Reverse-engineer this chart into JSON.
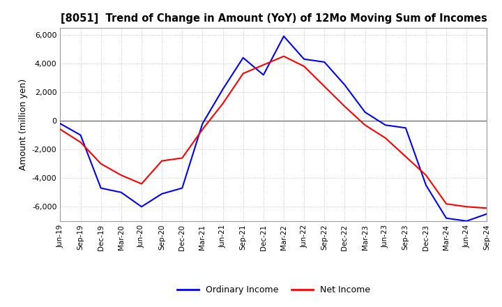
{
  "title": "[8051]  Trend of Change in Amount (YoY) of 12Mo Moving Sum of Incomes",
  "ylabel": "Amount (million yen)",
  "ylim": [
    -7000,
    6500
  ],
  "yticks": [
    -6000,
    -4000,
    -2000,
    0,
    2000,
    4000,
    6000
  ],
  "background_color": "#ffffff",
  "grid_color": "#aaaaaa",
  "ordinary_income_color": "#0000ff",
  "net_income_color": "#ff0000",
  "x_labels": [
    "Jun-19",
    "Sep-19",
    "Dec-19",
    "Mar-20",
    "Jun-20",
    "Sep-20",
    "Dec-20",
    "Mar-21",
    "Jun-21",
    "Sep-21",
    "Dec-21",
    "Mar-22",
    "Jun-22",
    "Sep-22",
    "Dec-22",
    "Mar-23",
    "Jun-23",
    "Sep-23",
    "Dec-23",
    "Mar-24",
    "Jun-24",
    "Sep-24"
  ],
  "ordinary_income": [
    -200,
    -1000,
    -4700,
    -5000,
    -6000,
    -5100,
    -4700,
    -200,
    2200,
    4400,
    3200,
    5900,
    4300,
    4100,
    2500,
    600,
    -300,
    -500,
    -4500,
    -6800,
    -7000,
    -6500
  ],
  "net_income": [
    -600,
    -1500,
    -3000,
    -3800,
    -4400,
    -2800,
    -2600,
    -600,
    1200,
    3300,
    3900,
    4500,
    3800,
    2400,
    1000,
    -300,
    -1200,
    -2500,
    -3800,
    -5800,
    -6000,
    -6100
  ]
}
